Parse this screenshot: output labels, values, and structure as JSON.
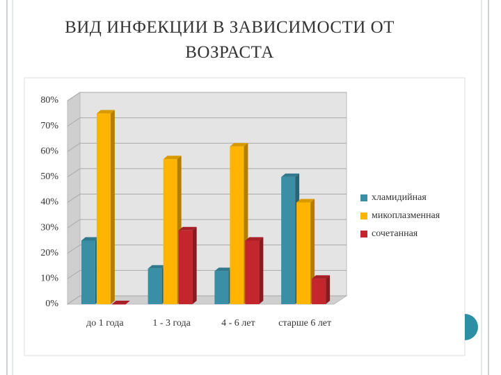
{
  "chart_data": {
    "type": "bar",
    "title": "ВИД ИНФЕКЦИИ В ЗАВИСИМОСТИ ОТ ВОЗРАСТА",
    "categories": [
      "до 1 года",
      "1 - 3 года",
      "4 - 6 лет",
      "старше 6 лет"
    ],
    "series": [
      {
        "name": "хламидийная",
        "color": "#3a8fa6",
        "values": [
          25,
          14,
          13,
          50
        ]
      },
      {
        "name": "микоплазменная",
        "color": "#ffb400",
        "values": [
          75,
          57,
          62,
          40
        ]
      },
      {
        "name": "сочетанная",
        "color": "#c4262e",
        "values": [
          0,
          29,
          25,
          10
        ]
      }
    ],
    "ylim": [
      0,
      80
    ],
    "yticks": [
      {
        "value": 0,
        "label": "0%"
      },
      {
        "value": 10,
        "label": "10%"
      },
      {
        "value": 20,
        "label": "20%"
      },
      {
        "value": 30,
        "label": "30%"
      },
      {
        "value": 40,
        "label": "40%"
      },
      {
        "value": 50,
        "label": "50%"
      },
      {
        "value": 60,
        "label": "60%"
      },
      {
        "value": 70,
        "label": "70%"
      },
      {
        "value": 80,
        "label": "80%"
      }
    ],
    "grid": true,
    "legend": "right"
  }
}
